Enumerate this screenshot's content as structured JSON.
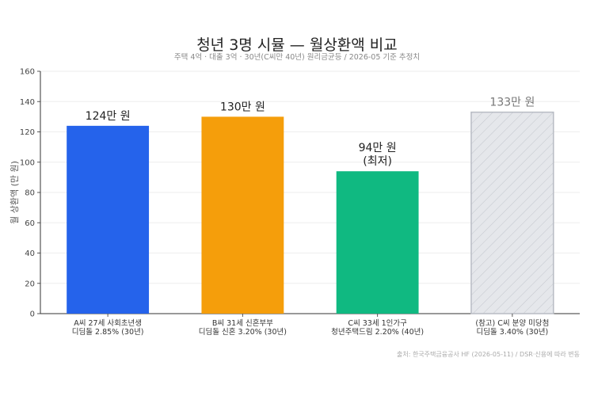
{
  "title": "청년 3명 시뮬 — 월상환액 비교",
  "subtitle": "주택 4억 · 대출 3억 · 30년(C씨만 40년) 원리금균등 / 2026-05 기준 추정치",
  "source": "출처: 한국주택금융공사 HF (2026-05-11) / DSR·신용에 따라 변동",
  "chart_data": {
    "type": "bar",
    "ylabel": "월 상환액 (만 원)",
    "ylim": [
      0,
      160
    ],
    "yticks": [
      0,
      20,
      40,
      60,
      80,
      100,
      120,
      140,
      160
    ],
    "grid": true,
    "categories": [
      [
        "A씨 27세 사회초년생",
        "디딤돌 2.85% (30년)"
      ],
      [
        "B씨 31세 신혼부부",
        "디딤돌 신혼 3.20% (30년)"
      ],
      [
        "C씨 33세 1인가구",
        "청년주택드림 2.20% (40년)"
      ],
      [
        "(참고) C씨 분양 미당첨",
        "디딤돌 3.40% (30년)"
      ]
    ],
    "values": [
      124,
      130,
      94,
      133
    ],
    "data_labels": [
      [
        "124만 원"
      ],
      [
        "130만 원"
      ],
      [
        "94만 원",
        "(최저)"
      ],
      [
        "133만 원"
      ]
    ],
    "colors": [
      "#2563eb",
      "#f59e0b",
      "#10b981",
      "#e5e7eb"
    ],
    "hatched": [
      false,
      false,
      false,
      true
    ]
  }
}
